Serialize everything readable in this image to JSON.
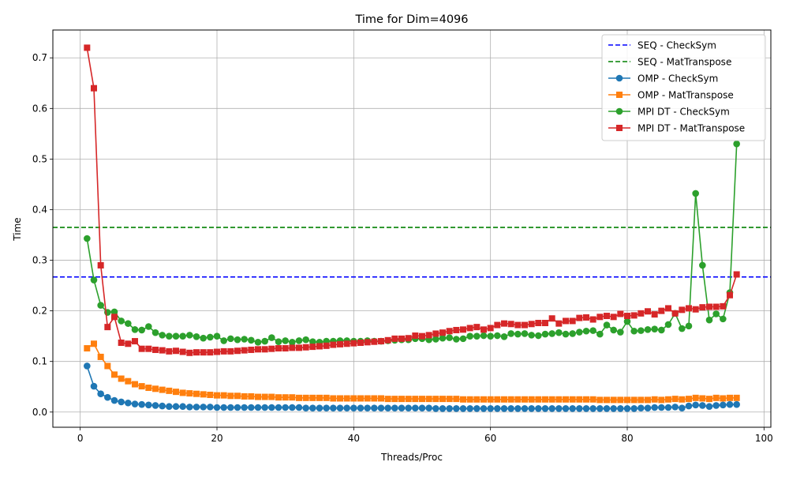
{
  "chart_data": {
    "type": "line",
    "title": "Time for Dim=4096",
    "xlabel": "Threads/Proc",
    "ylabel": "Time",
    "xlim": [
      -4,
      101
    ],
    "ylim": [
      -0.03,
      0.755
    ],
    "x_ticks": [
      0,
      20,
      40,
      60,
      80,
      100
    ],
    "y_ticks": [
      0.0,
      0.1,
      0.2,
      0.3,
      0.4,
      0.5,
      0.6,
      0.7
    ],
    "grid": true,
    "legend_position": "top-right",
    "reference_lines": [
      {
        "name": "SEQ - CheckSym",
        "y": 0.267,
        "color": "#0000ff",
        "dash": "dashed"
      },
      {
        "name": "SEQ - MatTranspose",
        "y": 0.365,
        "color": "#008000",
        "dash": "dashed"
      }
    ],
    "series": [
      {
        "name": "OMP - CheckSym",
        "color": "#1f77b4",
        "marker": "circle",
        "values": [
          0.091,
          0.051,
          0.036,
          0.029,
          0.023,
          0.02,
          0.018,
          0.016,
          0.015,
          0.014,
          0.013,
          0.012,
          0.011,
          0.011,
          0.011,
          0.01,
          0.01,
          0.01,
          0.01,
          0.009,
          0.009,
          0.009,
          0.009,
          0.009,
          0.009,
          0.009,
          0.009,
          0.009,
          0.009,
          0.009,
          0.009,
          0.009,
          0.008,
          0.008,
          0.008,
          0.008,
          0.008,
          0.008,
          0.008,
          0.008,
          0.008,
          0.008,
          0.008,
          0.008,
          0.008,
          0.008,
          0.008,
          0.008,
          0.008,
          0.008,
          0.008,
          0.007,
          0.007,
          0.007,
          0.007,
          0.007,
          0.007,
          0.007,
          0.007,
          0.007,
          0.007,
          0.007,
          0.007,
          0.007,
          0.007,
          0.007,
          0.007,
          0.007,
          0.007,
          0.007,
          0.007,
          0.007,
          0.007,
          0.007,
          0.007,
          0.007,
          0.007,
          0.007,
          0.007,
          0.007,
          0.007,
          0.008,
          0.008,
          0.009,
          0.009,
          0.009,
          0.01,
          0.008,
          0.012,
          0.014,
          0.013,
          0.011,
          0.013,
          0.014,
          0.015,
          0.015
        ]
      },
      {
        "name": "OMP - MatTranspose",
        "color": "#ff7f0e",
        "marker": "square",
        "values": [
          0.126,
          0.135,
          0.109,
          0.091,
          0.074,
          0.066,
          0.061,
          0.055,
          0.051,
          0.048,
          0.046,
          0.044,
          0.042,
          0.04,
          0.038,
          0.037,
          0.036,
          0.035,
          0.034,
          0.033,
          0.033,
          0.032,
          0.032,
          0.031,
          0.031,
          0.03,
          0.03,
          0.03,
          0.029,
          0.029,
          0.029,
          0.028,
          0.028,
          0.028,
          0.028,
          0.028,
          0.027,
          0.027,
          0.027,
          0.027,
          0.027,
          0.027,
          0.027,
          0.027,
          0.026,
          0.026,
          0.026,
          0.026,
          0.026,
          0.026,
          0.026,
          0.026,
          0.026,
          0.026,
          0.026,
          0.025,
          0.025,
          0.025,
          0.025,
          0.025,
          0.025,
          0.025,
          0.025,
          0.025,
          0.025,
          0.025,
          0.025,
          0.025,
          0.025,
          0.025,
          0.025,
          0.025,
          0.025,
          0.025,
          0.025,
          0.024,
          0.024,
          0.024,
          0.024,
          0.024,
          0.024,
          0.024,
          0.024,
          0.025,
          0.024,
          0.025,
          0.026,
          0.025,
          0.026,
          0.028,
          0.027,
          0.026,
          0.028,
          0.027,
          0.028,
          0.028
        ]
      },
      {
        "name": "MPI DT - CheckSym",
        "color": "#2ca02c",
        "marker": "circle",
        "values": [
          0.343,
          0.261,
          0.211,
          0.197,
          0.198,
          0.18,
          0.175,
          0.163,
          0.162,
          0.169,
          0.157,
          0.152,
          0.15,
          0.15,
          0.15,
          0.152,
          0.149,
          0.146,
          0.148,
          0.15,
          0.141,
          0.145,
          0.143,
          0.144,
          0.142,
          0.138,
          0.14,
          0.147,
          0.139,
          0.141,
          0.138,
          0.141,
          0.143,
          0.139,
          0.138,
          0.14,
          0.14,
          0.141,
          0.141,
          0.14,
          0.14,
          0.141,
          0.14,
          0.14,
          0.141,
          0.142,
          0.143,
          0.143,
          0.145,
          0.145,
          0.143,
          0.144,
          0.146,
          0.147,
          0.144,
          0.145,
          0.15,
          0.15,
          0.151,
          0.15,
          0.151,
          0.149,
          0.155,
          0.154,
          0.155,
          0.152,
          0.151,
          0.154,
          0.155,
          0.157,
          0.154,
          0.155,
          0.158,
          0.16,
          0.161,
          0.154,
          0.172,
          0.162,
          0.158,
          0.179,
          0.16,
          0.161,
          0.163,
          0.164,
          0.162,
          0.173,
          0.195,
          0.165,
          0.17,
          0.432,
          0.29,
          0.182,
          0.194,
          0.184,
          0.236,
          0.53
        ]
      },
      {
        "name": "MPI DT - MatTranspose",
        "color": "#d62728",
        "marker": "square",
        "values": [
          0.72,
          0.64,
          0.29,
          0.168,
          0.188,
          0.137,
          0.135,
          0.14,
          0.125,
          0.125,
          0.123,
          0.122,
          0.12,
          0.121,
          0.119,
          0.117,
          0.118,
          0.118,
          0.118,
          0.119,
          0.12,
          0.12,
          0.121,
          0.122,
          0.123,
          0.124,
          0.124,
          0.125,
          0.126,
          0.126,
          0.127,
          0.127,
          0.128,
          0.129,
          0.13,
          0.131,
          0.133,
          0.134,
          0.135,
          0.136,
          0.137,
          0.138,
          0.139,
          0.14,
          0.142,
          0.145,
          0.145,
          0.146,
          0.151,
          0.15,
          0.152,
          0.155,
          0.157,
          0.16,
          0.162,
          0.163,
          0.166,
          0.168,
          0.163,
          0.166,
          0.172,
          0.175,
          0.174,
          0.172,
          0.172,
          0.174,
          0.176,
          0.176,
          0.185,
          0.175,
          0.18,
          0.18,
          0.186,
          0.187,
          0.183,
          0.188,
          0.19,
          0.188,
          0.194,
          0.19,
          0.191,
          0.195,
          0.199,
          0.193,
          0.2,
          0.205,
          0.195,
          0.202,
          0.205,
          0.203,
          0.207,
          0.208,
          0.208,
          0.209,
          0.231,
          0.272
        ]
      }
    ]
  }
}
